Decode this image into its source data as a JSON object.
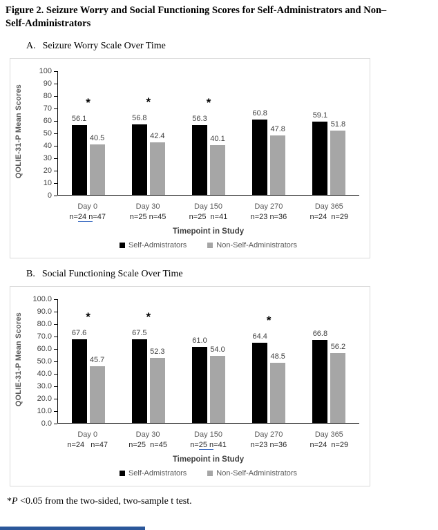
{
  "figure": {
    "title_lines": [
      "Figure 2. Seizure Worry and Social Functioning Scores for Self-Administrators and Non–",
      "Self-Administrators"
    ]
  },
  "footnote": {
    "star": "*",
    "p": "P",
    "rest": " <0.05 from the two-sided, two-sample t test."
  },
  "colors": {
    "self": "#000000",
    "non_self": "#a6a6a6",
    "underline_blue": "#4472c4",
    "panel_border": "#d9d9d9"
  },
  "chart_data": [
    {
      "type": "bar",
      "panel_label": "A.",
      "title": "Seizure Worry Scale Over Time",
      "ylabel": "QOLIE-31-P Mean Scores",
      "xlabel": "Timepoint in Study",
      "ylim": [
        0,
        100
      ],
      "ytick_step": 10,
      "ytick_decimals": 0,
      "value_decimals": 1,
      "grid": false,
      "legend_position": "bottom",
      "categories": [
        "Day 0",
        "Day 30",
        "Day 150",
        "Day 270",
        "Day 365"
      ],
      "n_labels": [
        [
          {
            "t": "n="
          },
          {
            "t": "24 n",
            "u": true
          },
          {
            "t": "=47"
          }
        ],
        [
          {
            "t": "n=25 n=45"
          }
        ],
        [
          {
            "t": "n=25  n=41"
          }
        ],
        [
          {
            "t": "n=23 n=36"
          }
        ],
        [
          {
            "t": "n=24  n=29"
          }
        ]
      ],
      "series": [
        {
          "name": "Self-Admistrators",
          "color": "#000000",
          "values": [
            56.1,
            56.8,
            56.3,
            60.8,
            59.1
          ]
        },
        {
          "name": "Non-Self-Administrators",
          "color": "#a6a6a6",
          "values": [
            40.5,
            42.4,
            40.1,
            47.8,
            51.8
          ]
        }
      ],
      "significant": [
        true,
        true,
        true,
        false,
        false
      ],
      "significance_marker": "*"
    },
    {
      "type": "bar",
      "panel_label": "B.",
      "title": "Social Functioning Scale Over Time",
      "ylabel": "QOLIE-31-P Mean Scores",
      "xlabel": "Timepoint in Study",
      "ylim": [
        0,
        100
      ],
      "ytick_step": 10,
      "ytick_decimals": 1,
      "value_decimals": 1,
      "grid": false,
      "legend_position": "bottom",
      "categories": [
        "Day 0",
        "Day 30",
        "Day 150",
        "Day 270",
        "Day 365"
      ],
      "n_labels": [
        [
          {
            "t": "n=24   n=47"
          }
        ],
        [
          {
            "t": "n=25  n=45"
          }
        ],
        [
          {
            "t": "n="
          },
          {
            "t": "25 n",
            "u": true
          },
          {
            "t": "=41"
          }
        ],
        [
          {
            "t": "n=23 n=36"
          }
        ],
        [
          {
            "t": "n=24  n=29"
          }
        ]
      ],
      "series": [
        {
          "name": "Self-Admistrators",
          "color": "#000000",
          "values": [
            67.6,
            67.5,
            61.0,
            64.4,
            66.8
          ]
        },
        {
          "name": "Non-Self-Administrators",
          "color": "#a6a6a6",
          "values": [
            45.7,
            52.3,
            54.0,
            48.5,
            56.2
          ]
        }
      ],
      "significant": [
        true,
        true,
        false,
        true,
        false
      ],
      "significance_marker": "*"
    }
  ]
}
